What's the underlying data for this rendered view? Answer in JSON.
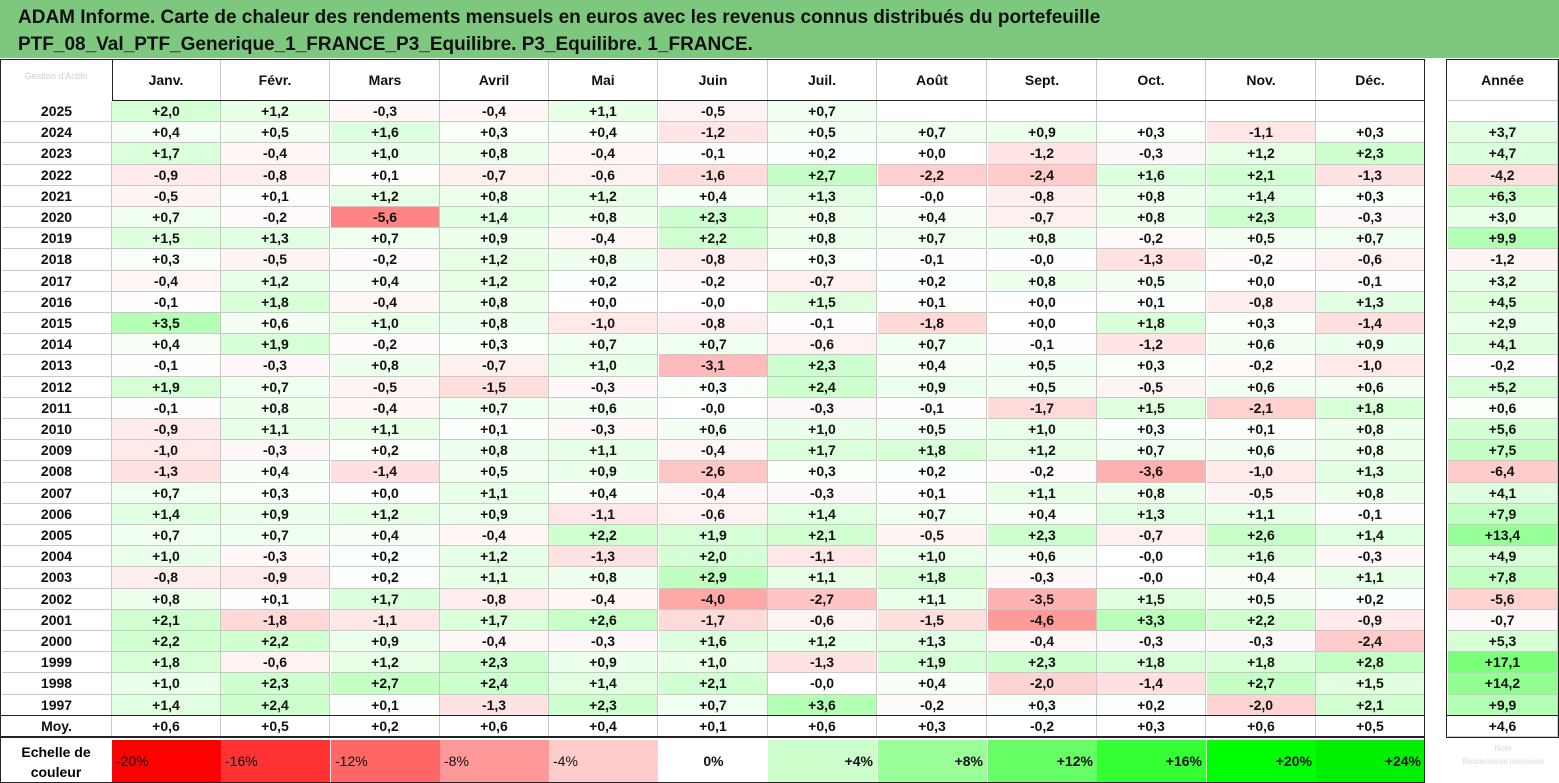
{
  "title": {
    "line1": "ADAM Informe. Carte de chaleur des rendements mensuels en euros avec les revenus connus distribués du portefeuille",
    "line2": "PTF_08_Val_PTF_Generique_1_FRANCE_P3_Equilibre. P3_Equilibre. 1_FRANCE."
  },
  "logo_text": "Gestion d'Actifs",
  "months": [
    "Janv.",
    "Févr.",
    "Mars",
    "Avril",
    "Mai",
    "Juin",
    "Juil.",
    "Août",
    "Sept.",
    "Oct.",
    "Nov.",
    "Déc."
  ],
  "year_header": "Année",
  "average_label": "Moy.",
  "scale_label_1": "Echelle de",
  "scale_label_2": "couleur",
  "scale": [
    "-20%",
    "-16%",
    "-12%",
    "-8%",
    "-4%",
    "0%",
    "+4%",
    "+8%",
    "+12%",
    "+16%",
    "+20%",
    "+24%"
  ],
  "scale_colors": [
    "#ff0000",
    "#ff3333",
    "#ff6666",
    "#ff9999",
    "#ffcccc",
    "#ffffff",
    "#ccffcc",
    "#99ff99",
    "#66ff66",
    "#33ff33",
    "#00ff00",
    "#00f000"
  ],
  "faded_note_1": "Note",
  "faded_note_2": "Rendements mensuels",
  "colors": {
    "title_bar": "#7dc87e",
    "negative": "#ff0000",
    "positive": "#00ff00"
  },
  "chart_data": {
    "type": "heatmap",
    "x": [
      "Janv.",
      "Févr.",
      "Mars",
      "Avril",
      "Mai",
      "Juin",
      "Juil.",
      "Août",
      "Sept.",
      "Oct.",
      "Nov.",
      "Déc.",
      "Année"
    ],
    "rows": [
      {
        "year": "2025",
        "values": [
          "+2,0",
          "+1,2",
          "-0,3",
          "-0,4",
          "+1,1",
          "-0,5",
          "+0,7",
          "",
          "",
          "",
          "",
          "",
          ""
        ]
      },
      {
        "year": "2024",
        "values": [
          "+0,4",
          "+0,5",
          "+1,6",
          "+0,3",
          "+0,4",
          "-1,2",
          "+0,5",
          "+0,7",
          "+0,9",
          "+0,3",
          "-1,1",
          "+0,3",
          "+3,7"
        ]
      },
      {
        "year": "2023",
        "values": [
          "+1,7",
          "-0,4",
          "+1,0",
          "+0,8",
          "-0,4",
          "-0,1",
          "+0,2",
          "+0,0",
          "-1,2",
          "-0,3",
          "+1,2",
          "+2,3",
          "+4,7"
        ]
      },
      {
        "year": "2022",
        "values": [
          "-0,9",
          "-0,8",
          "+0,1",
          "-0,7",
          "-0,6",
          "-1,6",
          "+2,7",
          "-2,2",
          "-2,4",
          "+1,6",
          "+2,1",
          "-1,3",
          "-4,2"
        ]
      },
      {
        "year": "2021",
        "values": [
          "-0,5",
          "+0,1",
          "+1,2",
          "+0,8",
          "+1,2",
          "+0,4",
          "+1,3",
          "-0,0",
          "-0,8",
          "+0,8",
          "+1,4",
          "+0,3",
          "+6,3"
        ]
      },
      {
        "year": "2020",
        "values": [
          "+0,7",
          "-0,2",
          "-5,6",
          "+1,4",
          "+0,8",
          "+2,3",
          "+0,8",
          "+0,4",
          "-0,7",
          "+0,8",
          "+2,3",
          "-0,3",
          "+3,0"
        ]
      },
      {
        "year": "2019",
        "values": [
          "+1,5",
          "+1,3",
          "+0,7",
          "+0,9",
          "-0,4",
          "+2,2",
          "+0,8",
          "+0,7",
          "+0,8",
          "-0,2",
          "+0,5",
          "+0,7",
          "+9,9"
        ]
      },
      {
        "year": "2018",
        "values": [
          "+0,3",
          "-0,5",
          "-0,2",
          "+1,2",
          "+0,8",
          "-0,8",
          "+0,3",
          "-0,1",
          "-0,0",
          "-1,3",
          "-0,2",
          "-0,6",
          "-1,2"
        ]
      },
      {
        "year": "2017",
        "values": [
          "-0,4",
          "+1,2",
          "+0,4",
          "+1,2",
          "+0,2",
          "-0,2",
          "-0,7",
          "+0,2",
          "+0,8",
          "+0,5",
          "+0,0",
          "-0,1",
          "+3,2"
        ]
      },
      {
        "year": "2016",
        "values": [
          "-0,1",
          "+1,8",
          "-0,4",
          "+0,8",
          "+0,0",
          "-0,0",
          "+1,5",
          "+0,1",
          "+0,0",
          "+0,1",
          "-0,8",
          "+1,3",
          "+4,5"
        ]
      },
      {
        "year": "2015",
        "values": [
          "+3,5",
          "+0,6",
          "+1,0",
          "+0,8",
          "-1,0",
          "-0,8",
          "-0,1",
          "-1,8",
          "+0,0",
          "+1,8",
          "+0,3",
          "-1,4",
          "+2,9"
        ]
      },
      {
        "year": "2014",
        "values": [
          "+0,4",
          "+1,9",
          "-0,2",
          "+0,3",
          "+0,7",
          "+0,7",
          "-0,6",
          "+0,7",
          "-0,1",
          "-1,2",
          "+0,6",
          "+0,9",
          "+4,1"
        ]
      },
      {
        "year": "2013",
        "values": [
          "-0,1",
          "-0,3",
          "+0,8",
          "-0,7",
          "+1,0",
          "-3,1",
          "+2,3",
          "+0,4",
          "+0,5",
          "+0,3",
          "-0,2",
          "-1,0",
          "-0,2"
        ]
      },
      {
        "year": "2012",
        "values": [
          "+1,9",
          "+0,7",
          "-0,5",
          "-1,5",
          "-0,3",
          "+0,3",
          "+2,4",
          "+0,9",
          "+0,5",
          "-0,5",
          "+0,6",
          "+0,6",
          "+5,2"
        ]
      },
      {
        "year": "2011",
        "values": [
          "-0,1",
          "+0,8",
          "-0,4",
          "+0,7",
          "+0,6",
          "-0,0",
          "-0,3",
          "-0,1",
          "-1,7",
          "+1,5",
          "-2,1",
          "+1,8",
          "+0,6"
        ]
      },
      {
        "year": "2010",
        "values": [
          "-0,9",
          "+1,1",
          "+1,1",
          "+0,1",
          "-0,3",
          "+0,6",
          "+1,0",
          "+0,5",
          "+1,0",
          "+0,3",
          "+0,1",
          "+0,8",
          "+5,6"
        ]
      },
      {
        "year": "2009",
        "values": [
          "-1,0",
          "-0,3",
          "+0,2",
          "+0,8",
          "+1,1",
          "-0,4",
          "+1,7",
          "+1,8",
          "+1,2",
          "+0,7",
          "+0,6",
          "+0,8",
          "+7,5"
        ]
      },
      {
        "year": "2008",
        "values": [
          "-1,3",
          "+0,4",
          "-1,4",
          "+0,5",
          "+0,9",
          "-2,6",
          "+0,3",
          "+0,2",
          "-0,2",
          "-3,6",
          "-1,0",
          "+1,3",
          "-6,4"
        ]
      },
      {
        "year": "2007",
        "values": [
          "+0,7",
          "+0,3",
          "+0,0",
          "+1,1",
          "+0,4",
          "-0,4",
          "-0,3",
          "+0,1",
          "+1,1",
          "+0,8",
          "-0,5",
          "+0,8",
          "+4,1"
        ]
      },
      {
        "year": "2006",
        "values": [
          "+1,4",
          "+0,9",
          "+1,2",
          "+0,9",
          "-1,1",
          "-0,6",
          "+1,4",
          "+0,7",
          "+0,4",
          "+1,3",
          "+1,1",
          "-0,1",
          "+7,9"
        ]
      },
      {
        "year": "2005",
        "values": [
          "+0,7",
          "+0,7",
          "+0,4",
          "-0,4",
          "+2,2",
          "+1,9",
          "+2,1",
          "-0,5",
          "+2,3",
          "-0,7",
          "+2,6",
          "+1,4",
          "+13,4"
        ]
      },
      {
        "year": "2004",
        "values": [
          "+1,0",
          "-0,3",
          "+0,2",
          "+1,2",
          "-1,3",
          "+2,0",
          "-1,1",
          "+1,0",
          "+0,6",
          "-0,0",
          "+1,6",
          "-0,3",
          "+4,9"
        ]
      },
      {
        "year": "2003",
        "values": [
          "-0,8",
          "-0,9",
          "+0,2",
          "+1,1",
          "+0,8",
          "+2,9",
          "+1,1",
          "+1,8",
          "-0,3",
          "-0,0",
          "+0,4",
          "+1,1",
          "+7,8"
        ]
      },
      {
        "year": "2002",
        "values": [
          "+0,8",
          "+0,1",
          "+1,7",
          "-0,8",
          "-0,4",
          "-4,0",
          "-2,7",
          "+1,1",
          "-3,5",
          "+1,5",
          "+0,5",
          "+0,2",
          "-5,6"
        ]
      },
      {
        "year": "2001",
        "values": [
          "+2,1",
          "-1,8",
          "-1,1",
          "+1,7",
          "+2,6",
          "-1,7",
          "-0,6",
          "-1,5",
          "-4,6",
          "+3,3",
          "+2,2",
          "-0,9",
          "-0,7"
        ]
      },
      {
        "year": "2000",
        "values": [
          "+2,2",
          "+2,2",
          "+0,9",
          "-0,4",
          "-0,3",
          "+1,6",
          "+1,2",
          "+1,3",
          "-0,4",
          "-0,3",
          "-0,3",
          "-2,4",
          "+5,3"
        ]
      },
      {
        "year": "1999",
        "values": [
          "+1,8",
          "-0,6",
          "+1,2",
          "+2,3",
          "+0,9",
          "+1,0",
          "-1,3",
          "+1,9",
          "+2,3",
          "+1,8",
          "+1,8",
          "+2,8",
          "+17,1"
        ]
      },
      {
        "year": "1998",
        "values": [
          "+1,0",
          "+2,3",
          "+2,7",
          "+2,4",
          "+1,4",
          "+2,1",
          "-0,0",
          "+0,4",
          "-2,0",
          "-1,4",
          "+2,7",
          "+1,5",
          "+14,2"
        ]
      },
      {
        "year": "1997",
        "values": [
          "+1,4",
          "+2,4",
          "+0,1",
          "-1,3",
          "+2,3",
          "+0,7",
          "+3,6",
          "-0,2",
          "+0,3",
          "+0,2",
          "-2,0",
          "+2,1",
          "+9,9"
        ]
      }
    ],
    "average": [
      "+0,6",
      "+0,5",
      "+0,2",
      "+0,6",
      "+0,4",
      "+0,1",
      "+0,6",
      "+0,3",
      "-0,2",
      "+0,3",
      "+0,6",
      "+0,5",
      "+4,6"
    ],
    "color_scale_min": -20,
    "color_scale_max": 24
  }
}
